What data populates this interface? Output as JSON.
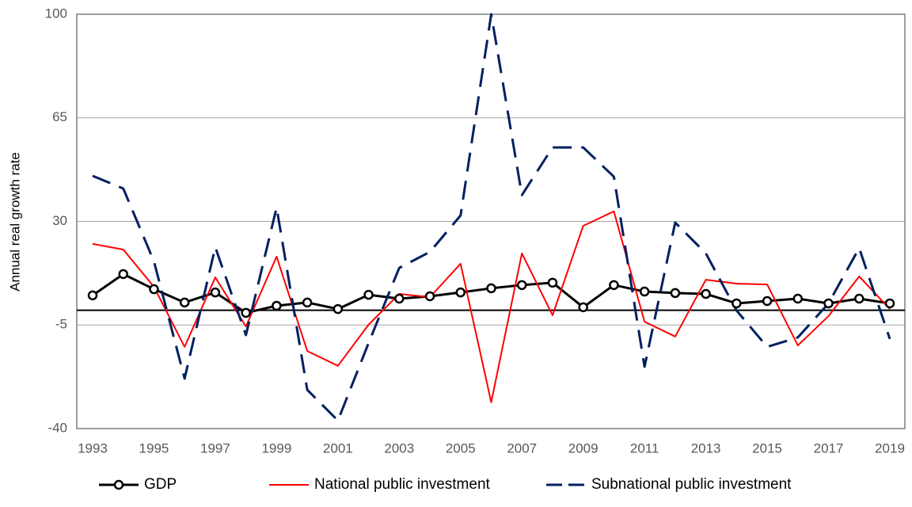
{
  "chart_data": {
    "type": "line",
    "y_label": "Annual real growth rate",
    "x": [
      1993,
      1994,
      1995,
      1996,
      1997,
      1998,
      1999,
      2000,
      2001,
      2002,
      2003,
      2004,
      2005,
      2006,
      2007,
      2008,
      2009,
      2010,
      2011,
      2012,
      2013,
      2014,
      2015,
      2016,
      2017,
      2018,
      2019
    ],
    "xlim": [
      1993,
      2019
    ],
    "xticks": [
      1993,
      1995,
      1997,
      1999,
      2001,
      2003,
      2005,
      2007,
      2009,
      2011,
      2013,
      2015,
      2017,
      2019
    ],
    "ylim": [
      -40,
      100
    ],
    "yticks": [
      -40,
      -5,
      30,
      65,
      100
    ],
    "grid": true,
    "legend": "bottom",
    "series": [
      {
        "name": "GDP",
        "color": "#000000",
        "line_style": "solid",
        "marker": "circle",
        "values": [
          5.0,
          12.2,
          7.1,
          2.6,
          6.0,
          -0.9,
          1.5,
          2.6,
          0.4,
          5.2,
          3.9,
          4.7,
          6.0,
          7.4,
          8.5,
          9.3,
          1.0,
          8.5,
          6.3,
          5.8,
          5.5,
          2.3,
          3.1,
          3.9,
          2.3,
          3.9,
          2.3
        ]
      },
      {
        "name": "National public investment",
        "color": "#ff0000",
        "line_style": "solid",
        "marker": "none",
        "values": [
          22.4,
          20.5,
          7.9,
          -12.4,
          11.1,
          -5.5,
          18.1,
          -13.8,
          -18.8,
          -4.9,
          5.5,
          4.4,
          15.7,
          -31.1,
          19.2,
          -1.7,
          28.5,
          33.4,
          -3.9,
          -8.9,
          10.3,
          9.0,
          8.7,
          -11.9,
          -2.0,
          11.4,
          0.4
        ]
      },
      {
        "name": "Subnational public investment",
        "color": "#002060",
        "line_style": "dashed",
        "marker": "none",
        "values": [
          45.4,
          41.1,
          16.5,
          -23.1,
          21.3,
          -8.4,
          34.7,
          -26.9,
          -37.3,
          -11.1,
          14.3,
          19.7,
          32.0,
          100,
          38.9,
          55.0,
          55.0,
          45.1,
          -19.1,
          29.6,
          19.2,
          -0.1,
          -12.4,
          -9.2,
          2.3,
          21.0,
          -9.7
        ]
      }
    ]
  }
}
